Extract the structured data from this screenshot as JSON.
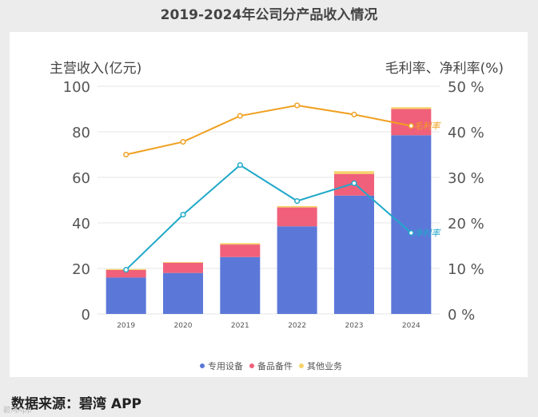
{
  "page": {
    "title": "2019-2024年公司分产品收入情况",
    "source": "数据来源：碧湾 APP",
    "watermark": "碧湾App"
  },
  "chart_data": {
    "type": "bar+line",
    "categories": [
      "2019",
      "2020",
      "2021",
      "2022",
      "2023",
      "2024"
    ],
    "bar_series": [
      {
        "name": "专用设备",
        "color": "#5b78d9",
        "values": [
          16,
          18,
          25,
          38.5,
          52,
          78.5
        ]
      },
      {
        "name": "备品备件",
        "color": "#f0607a",
        "values": [
          3.3,
          4.5,
          5.5,
          8.3,
          9.5,
          11.5
        ]
      },
      {
        "name": "其他业务",
        "color": "#f5d36a",
        "values": [
          0.4,
          0.3,
          0.6,
          0.6,
          1.2,
          0.8
        ]
      }
    ],
    "line_series": [
      {
        "name": "毛利率",
        "color": "#f0a020",
        "values": [
          35,
          37.8,
          43.5,
          45.8,
          43.8,
          41.3
        ]
      },
      {
        "name": "净利率",
        "color": "#20a8c8",
        "values": [
          9.7,
          21.8,
          32.7,
          24.8,
          28.7,
          17.8
        ]
      }
    ],
    "y_left": {
      "label": "主营收入(亿元)",
      "min": 0,
      "max": 100,
      "ticks": [
        "0",
        "20",
        "40",
        "60",
        "80",
        "100"
      ]
    },
    "y_right": {
      "label": "毛利率、净利率(%)",
      "min": 0,
      "max": 50,
      "ticks": [
        "0 %",
        "10 %",
        "20 %",
        "30 %",
        "40 %",
        "50 %"
      ]
    },
    "legend_position": "bottom"
  },
  "colors": {
    "grid": "#e6e6e6",
    "axis_text": "#555555",
    "axis_label": "#444444"
  }
}
